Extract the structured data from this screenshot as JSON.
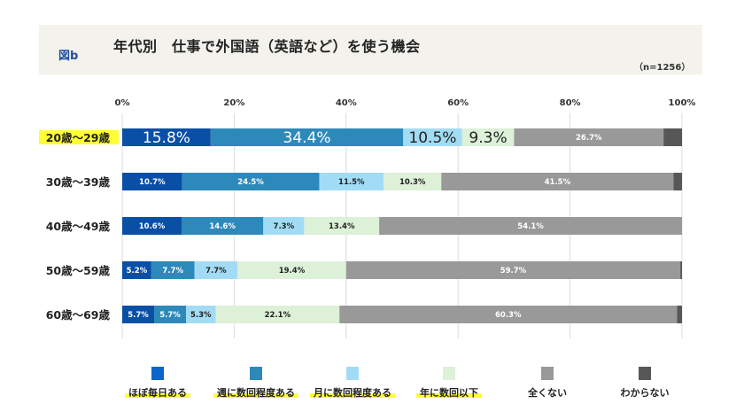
{
  "header": {
    "figure_label": "図b",
    "title": "年代別　仕事で外国語（英語など）を使う機会",
    "sample": "（n=1256）"
  },
  "chart_data": {
    "type": "bar",
    "orientation": "horizontal-stacked-100",
    "title": "年代別　仕事で外国語（英語など）を使う機会",
    "categories": [
      "20歳〜29歳",
      "30歳〜39歳",
      "40歳〜49歳",
      "50歳〜59歳",
      "60歳〜69歳"
    ],
    "highlighted_category": "20歳〜29歳",
    "xlim": [
      0,
      100
    ],
    "xticks": [
      "0%",
      "20%",
      "40%",
      "60%",
      "80%",
      "100%"
    ],
    "grid": true,
    "legend_position": "bottom",
    "series": [
      {
        "name": "ほぼ毎日ある",
        "color": "#0a4fa6",
        "legend_color": "#0a66c8",
        "highlighted": true,
        "values": [
          15.8,
          10.7,
          10.6,
          5.2,
          5.7
        ],
        "labels": [
          "15.8%",
          "10.7%",
          "10.6%",
          "5.2%",
          "5.7%"
        ]
      },
      {
        "name": "週に数回程度ある",
        "color": "#2e89bb",
        "legend_color": "#2e89bb",
        "highlighted": true,
        "values": [
          34.4,
          24.5,
          14.6,
          7.7,
          5.7
        ],
        "labels": [
          "34.4%",
          "24.5%",
          "14.6%",
          "7.7%",
          "5.7%"
        ]
      },
      {
        "name": "月に数回程度ある",
        "color": "#a2dcf4",
        "legend_color": "#a2dcf4",
        "highlighted": true,
        "values": [
          10.5,
          11.5,
          7.3,
          7.7,
          5.3
        ],
        "labels": [
          "10.5%",
          "11.5%",
          "7.3%",
          "7.7%",
          "5.3%"
        ]
      },
      {
        "name": "年に数回以下",
        "color": "#dcf1d8",
        "legend_color": "#dcf1d8",
        "highlighted": true,
        "values": [
          9.3,
          10.3,
          13.4,
          19.4,
          22.1
        ],
        "labels": [
          "9.3%",
          "10.3%",
          "13.4%",
          "19.4%",
          "22.1%"
        ]
      },
      {
        "name": "全くない",
        "color": "#999999",
        "legend_color": "#999999",
        "highlighted": false,
        "values": [
          26.7,
          41.5,
          54.1,
          59.7,
          60.3
        ],
        "labels": [
          "26.7%",
          "41.5%",
          "54.1%",
          "59.7%",
          "60.3%"
        ]
      },
      {
        "name": "わからない",
        "color": "#575757",
        "legend_color": "#575757",
        "highlighted": false,
        "values": [
          3.3,
          1.5,
          0,
          0.3,
          0.9
        ],
        "labels": [
          "",
          "",
          "",
          "",
          ""
        ]
      }
    ],
    "highlight_color": "#ffff33"
  }
}
